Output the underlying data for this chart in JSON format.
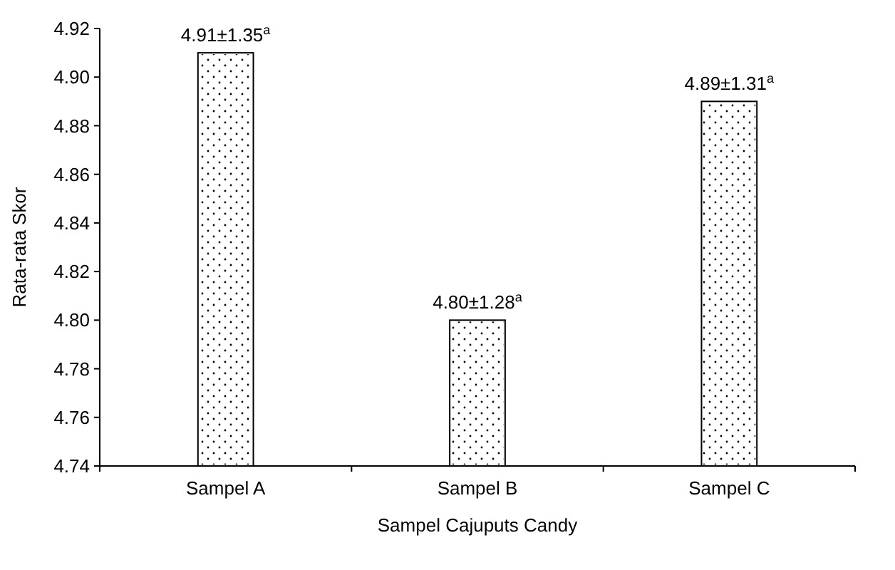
{
  "chart_data": {
    "type": "bar",
    "xlabel": "Sampel Cajuputs Candy",
    "ylabel": "Rata-rata Skor",
    "categories": [
      "Sampel A",
      "Sampel B",
      "Sampel C"
    ],
    "values": [
      4.91,
      4.8,
      4.89
    ],
    "value_labels": [
      "4.91±1.35$^{a}$",
      "4.80±1.28$^{a}$",
      "4.89±1.31$^{a}$"
    ],
    "color": "#ffffff",
    "ylim": [
      4.74,
      4.92
    ],
    "yticks": [
      {
        "value": 4.74,
        "label": "4.74"
      },
      {
        "value": 4.76,
        "label": "4.76"
      },
      {
        "value": 4.78,
        "label": "4.78"
      },
      {
        "value": 4.8,
        "label": "4.80"
      },
      {
        "value": 4.82,
        "label": "4.82"
      },
      {
        "value": 4.84,
        "label": "4.84"
      },
      {
        "value": 4.86,
        "label": "4.86"
      },
      {
        "value": 4.88,
        "label": "4.88"
      },
      {
        "value": 4.9,
        "label": "4.90"
      },
      {
        "value": 4.92,
        "label": "4.92"
      }
    ],
    "grid": false
  }
}
